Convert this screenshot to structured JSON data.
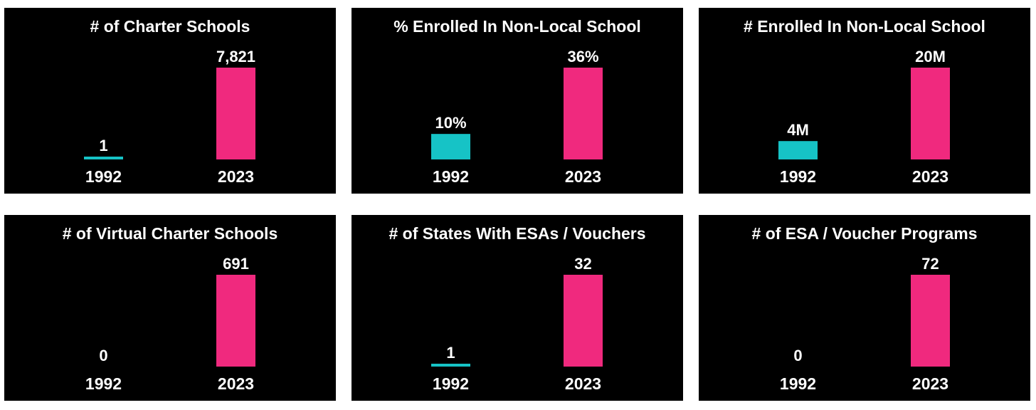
{
  "colors": {
    "background": "#000000",
    "bar_1992": "#16c3c6",
    "bar_2023": "#f0297e",
    "text": "#ffffff"
  },
  "chart_data": [
    {
      "type": "bar",
      "title": "# of Charter Schools",
      "categories": [
        "1992",
        "2023"
      ],
      "values": [
        1,
        7821
      ],
      "value_labels": [
        "1",
        "7,821"
      ]
    },
    {
      "type": "bar",
      "title": "% Enrolled In Non-Local School",
      "categories": [
        "1992",
        "2023"
      ],
      "values": [
        10,
        36
      ],
      "value_labels": [
        "10%",
        "36%"
      ]
    },
    {
      "type": "bar",
      "title": "# Enrolled In Non-Local School",
      "categories": [
        "1992",
        "2023"
      ],
      "values": [
        4,
        20
      ],
      "value_labels": [
        "4M",
        "20M"
      ]
    },
    {
      "type": "bar",
      "title": "# of Virtual Charter Schools",
      "categories": [
        "1992",
        "2023"
      ],
      "values": [
        0,
        691
      ],
      "value_labels": [
        "0",
        "691"
      ]
    },
    {
      "type": "bar",
      "title": "# of States With ESAs / Vouchers",
      "categories": [
        "1992",
        "2023"
      ],
      "values": [
        1,
        32
      ],
      "value_labels": [
        "1",
        "32"
      ]
    },
    {
      "type": "bar",
      "title": "# of ESA / Voucher Programs",
      "categories": [
        "1992",
        "2023"
      ],
      "values": [
        0,
        72
      ],
      "value_labels": [
        "0",
        "72"
      ]
    }
  ]
}
